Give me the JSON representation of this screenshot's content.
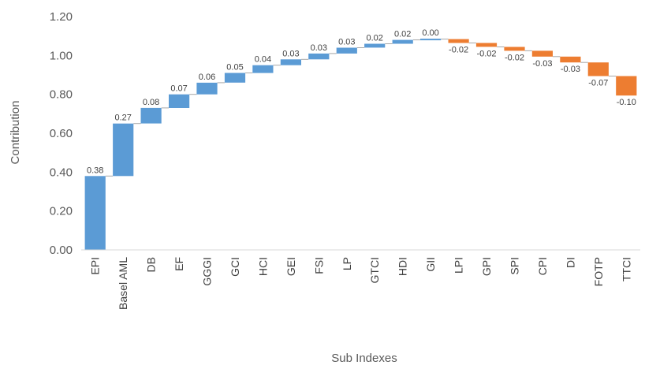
{
  "chart_data": {
    "type": "bar",
    "subtype": "waterfall",
    "xlabel": "Sub Indexes",
    "ylabel": "Contribution",
    "ylim": [
      0,
      1.2
    ],
    "y_ticks": [
      "0.00",
      "0.20",
      "0.40",
      "0.60",
      "0.80",
      "1.00",
      "1.20"
    ],
    "grid": false,
    "legend": "none",
    "colors": {
      "positive": "#5b9bd5",
      "negative": "#ed7d31",
      "connector": "#a6a6a6"
    },
    "categories": [
      "EPI",
      "Basel AML",
      "DB",
      "EF",
      "GGGI",
      "GCI",
      "HCI",
      "GEI",
      "FSI",
      "LP",
      "GTCI",
      "HDI",
      "GII",
      "LPI",
      "GPI",
      "SPI",
      "CPI",
      "DI",
      "FOTP",
      "TTCI"
    ],
    "values": [
      0.38,
      0.27,
      0.08,
      0.07,
      0.06,
      0.05,
      0.04,
      0.03,
      0.03,
      0.03,
      0.02,
      0.02,
      0.004,
      -0.02,
      -0.02,
      -0.02,
      -0.03,
      -0.03,
      -0.07,
      -0.1
    ],
    "labels": [
      "0.38",
      "0.27",
      "0.08",
      "0.07",
      "0.06",
      "0.05",
      "0.04",
      "0.03",
      "0.03",
      "0.03",
      "0.02",
      "0.02",
      "0.00",
      "-0.02",
      "-0.02",
      "-0.02",
      "-0.03",
      "-0.03",
      "-0.07",
      "-0.10"
    ]
  }
}
